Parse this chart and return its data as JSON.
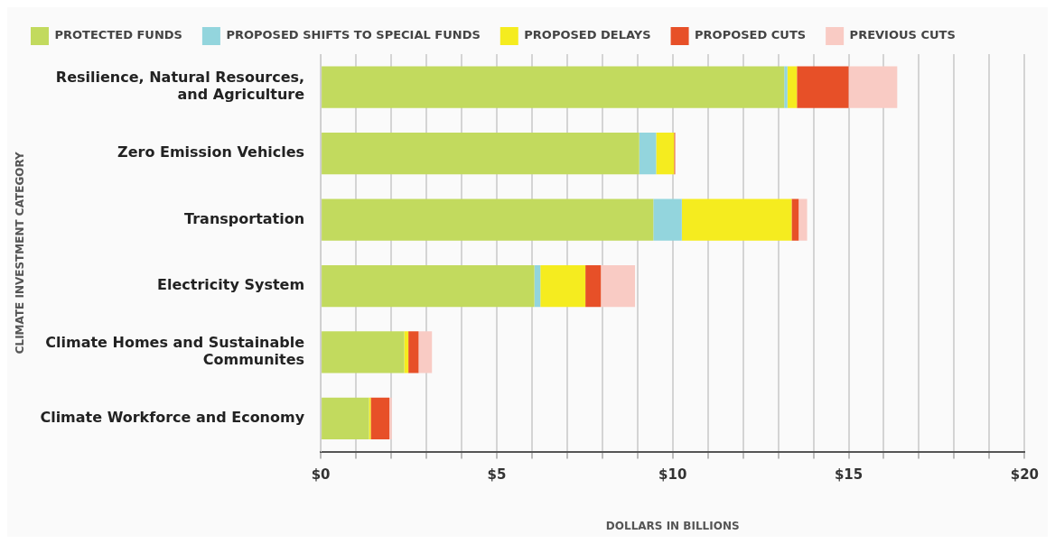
{
  "chart_data": {
    "type": "bar",
    "orientation": "horizontal",
    "stacked": true,
    "xlabel": "DOLLARS IN BILLIONS",
    "ylabel": "CLIMATE INVESTMENT CATEGORY",
    "categories": [
      "Resilience, Natural Resources, and Agriculture",
      "Zero Emission Vehicles",
      "Transportation",
      "Electricity System",
      "Climate Homes and Sustainable Communites",
      "Climate Workforce and Economy"
    ],
    "series": [
      {
        "name": "PROTECTED FUNDS",
        "color": "#c2da5e",
        "values": [
          13.17,
          9.05,
          9.45,
          6.07,
          2.37,
          1.37
        ]
      },
      {
        "name": "PROPOSED SHIFTS TO SPECIAL FUNDS",
        "color": "#93d5dd",
        "values": [
          0.09,
          0.48,
          0.81,
          0.17,
          0,
          0
        ]
      },
      {
        "name": "PROPOSED DELAYS",
        "color": "#f5ec1f",
        "values": [
          0.27,
          0.51,
          3.12,
          1.28,
          0.12,
          0.05
        ]
      },
      {
        "name": "PROPOSED CUTS",
        "color": "#e75028",
        "values": [
          1.47,
          0.03,
          0.2,
          0.44,
          0.29,
          0.53
        ]
      },
      {
        "name": "PREVIOUS CUTS",
        "color": "#f9cbc4",
        "values": [
          1.38,
          0,
          0.24,
          0.97,
          0.38,
          0.07
        ]
      }
    ],
    "xlim": [
      0,
      20
    ],
    "xticks": [
      {
        "value": 0,
        "label": "$0"
      },
      {
        "value": 1,
        "label": null
      },
      {
        "value": 2,
        "label": null
      },
      {
        "value": 3,
        "label": null
      },
      {
        "value": 4,
        "label": null
      },
      {
        "value": 5,
        "label": "$5"
      },
      {
        "value": 6,
        "label": null
      },
      {
        "value": 7,
        "label": null
      },
      {
        "value": 8,
        "label": null
      },
      {
        "value": 9,
        "label": null
      },
      {
        "value": 10,
        "label": "$10"
      },
      {
        "value": 11,
        "label": null
      },
      {
        "value": 12,
        "label": null
      },
      {
        "value": 13,
        "label": null
      },
      {
        "value": 14,
        "label": null
      },
      {
        "value": 15,
        "label": "$15"
      },
      {
        "value": 16,
        "label": null
      },
      {
        "value": 17,
        "label": null
      },
      {
        "value": 18,
        "label": null
      },
      {
        "value": 19,
        "label": null
      },
      {
        "value": 20,
        "label": "$20"
      }
    ],
    "grid": "x",
    "legend": "top left"
  }
}
